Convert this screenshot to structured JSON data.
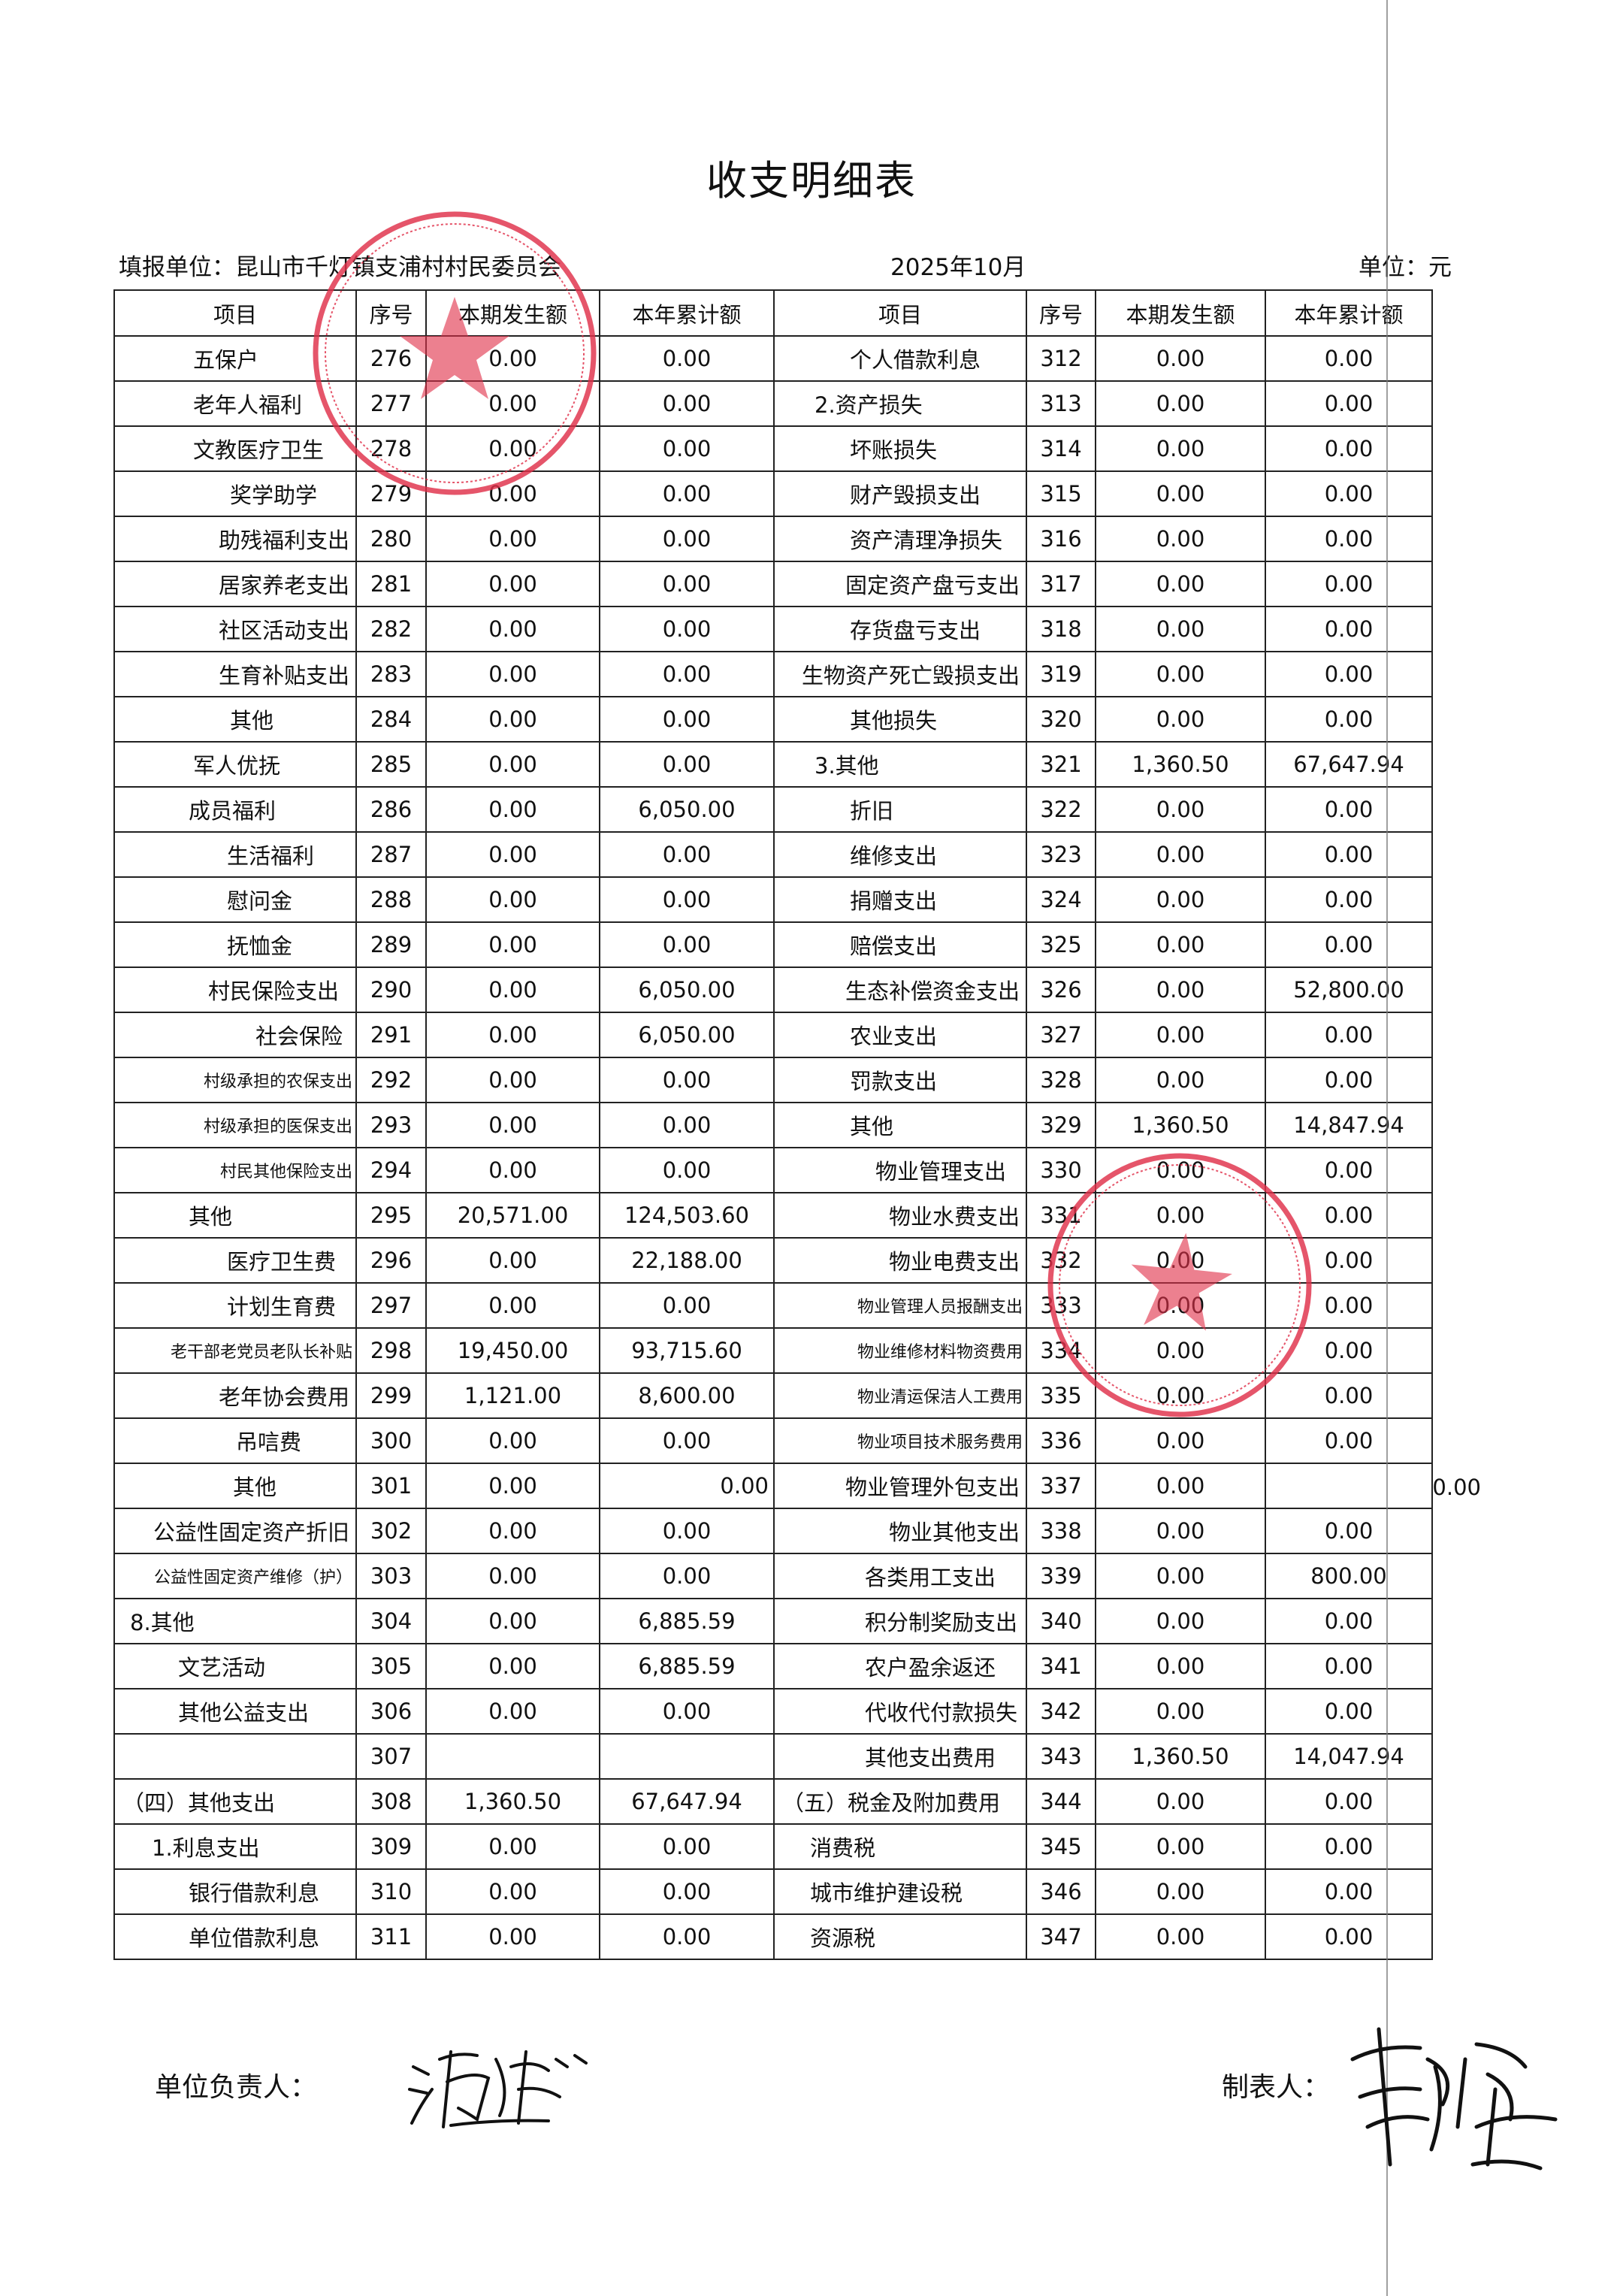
{
  "title": "收支明细表",
  "header": {
    "unit_name": "填报单位：昆山市千灯镇支浦村村民委员会",
    "period": "2025年10月",
    "unit": "单位：元"
  },
  "columns": [
    "项目",
    "序号",
    "本期发生额",
    "本年累计额",
    "项目",
    "序号",
    "本期发生额",
    "本年累计额"
  ],
  "rows": [
    [
      [
        "五保户",
        "276",
        "0.00",
        "0.00"
      ],
      [
        "个人借款利息",
        "312",
        "0.00",
        "0.00"
      ]
    ],
    [
      [
        "老年人福利",
        "277",
        "0.00",
        "0.00"
      ],
      [
        "2.资产损失",
        "313",
        "0.00",
        "0.00"
      ]
    ],
    [
      [
        "文教医疗卫生",
        "278",
        "0.00",
        "0.00"
      ],
      [
        "坏账损失",
        "314",
        "0.00",
        "0.00"
      ]
    ],
    [
      [
        "奖学助学",
        "279",
        "0.00",
        "0.00"
      ],
      [
        "财产毁损支出",
        "315",
        "0.00",
        "0.00"
      ]
    ],
    [
      [
        "助残福利支出",
        "280",
        "0.00",
        "0.00"
      ],
      [
        "资产清理净损失",
        "316",
        "0.00",
        "0.00"
      ]
    ],
    [
      [
        "居家养老支出",
        "281",
        "0.00",
        "0.00"
      ],
      [
        "固定资产盘亏支出",
        "317",
        "0.00",
        "0.00"
      ]
    ],
    [
      [
        "社区活动支出",
        "282",
        "0.00",
        "0.00"
      ],
      [
        "存货盘亏支出",
        "318",
        "0.00",
        "0.00"
      ]
    ],
    [
      [
        "生育补贴支出",
        "283",
        "0.00",
        "0.00"
      ],
      [
        "生物资产死亡毁损支出",
        "319",
        "0.00",
        "0.00"
      ]
    ],
    [
      [
        "其他",
        "284",
        "0.00",
        "0.00"
      ],
      [
        "其他损失",
        "320",
        "0.00",
        "0.00"
      ]
    ],
    [
      [
        "军人优抚",
        "285",
        "0.00",
        "0.00"
      ],
      [
        "3.其他",
        "321",
        "1,360.50",
        "67,647.94"
      ]
    ],
    [
      [
        "成员福利",
        "286",
        "0.00",
        "6,050.00"
      ],
      [
        "折旧",
        "322",
        "0.00",
        "0.00"
      ]
    ],
    [
      [
        "生活福利",
        "287",
        "0.00",
        "0.00"
      ],
      [
        "维修支出",
        "323",
        "0.00",
        "0.00"
      ]
    ],
    [
      [
        "慰问金",
        "288",
        "0.00",
        "0.00"
      ],
      [
        "捐赠支出",
        "324",
        "0.00",
        "0.00"
      ]
    ],
    [
      [
        "抚恤金",
        "289",
        "0.00",
        "0.00"
      ],
      [
        "赔偿支出",
        "325",
        "0.00",
        "0.00"
      ]
    ],
    [
      [
        "村民保险支出",
        "290",
        "0.00",
        "6,050.00"
      ],
      [
        "生态补偿资金支出",
        "326",
        "0.00",
        "52,800.00"
      ]
    ],
    [
      [
        "社会保险",
        "291",
        "0.00",
        "6,050.00"
      ],
      [
        "农业支出",
        "327",
        "0.00",
        "0.00"
      ]
    ],
    [
      [
        "村级承担的农保支出",
        "292",
        "0.00",
        "0.00"
      ],
      [
        "罚款支出",
        "328",
        "0.00",
        "0.00"
      ]
    ],
    [
      [
        "村级承担的医保支出",
        "293",
        "0.00",
        "0.00"
      ],
      [
        "其他",
        "329",
        "1,360.50",
        "14,847.94"
      ]
    ],
    [
      [
        "村民其他保险支出",
        "294",
        "0.00",
        "0.00"
      ],
      [
        "物业管理支出",
        "330",
        "0.00",
        "0.00"
      ]
    ],
    [
      [
        "其他",
        "295",
        "20,571.00",
        "124,503.60"
      ],
      [
        "物业水费支出",
        "331",
        "0.00",
        "0.00"
      ]
    ],
    [
      [
        "医疗卫生费",
        "296",
        "0.00",
        "22,188.00"
      ],
      [
        "物业电费支出",
        "332",
        "0.00",
        "0.00"
      ]
    ],
    [
      [
        "计划生育费",
        "297",
        "0.00",
        "0.00"
      ],
      [
        "物业管理人员报酬支出",
        "333",
        "0.00",
        "0.00"
      ]
    ],
    [
      [
        "老干部老党员老队长补贴",
        "298",
        "19,450.00",
        "93,715.60"
      ],
      [
        "物业维修材料物资费用",
        "334",
        "0.00",
        "0.00"
      ]
    ],
    [
      [
        "老年协会费用",
        "299",
        "1,121.00",
        "8,600.00"
      ],
      [
        "物业清运保洁人工费用",
        "335",
        "0.00",
        "0.00"
      ]
    ],
    [
      [
        "吊唁费",
        "300",
        "0.00",
        "0.00"
      ],
      [
        "物业项目技术服务费用",
        "336",
        "0.00",
        "0.00"
      ]
    ],
    [
      [
        "其他",
        "301",
        "0.00",
        "0.00"
      ],
      [
        "物业管理外包支出",
        "337",
        "0.00",
        "0.00"
      ]
    ],
    [
      [
        "公益性固定资产折旧",
        "302",
        "0.00",
        "0.00"
      ],
      [
        "物业其他支出",
        "338",
        "0.00",
        "0.00"
      ]
    ],
    [
      [
        "公益性固定资产维修（护）",
        "303",
        "0.00",
        "0.00"
      ],
      [
        "各类用工支出",
        "339",
        "0.00",
        "800.00"
      ]
    ],
    [
      [
        "8.其他",
        "304",
        "0.00",
        "6,885.59"
      ],
      [
        "积分制奖励支出",
        "340",
        "0.00",
        "0.00"
      ]
    ],
    [
      [
        "文艺活动",
        "305",
        "0.00",
        "6,885.59"
      ],
      [
        "农户盈余返还",
        "341",
        "0.00",
        "0.00"
      ]
    ],
    [
      [
        "其他公益支出",
        "306",
        "0.00",
        "0.00"
      ],
      [
        "代收代付款损失",
        "342",
        "0.00",
        "0.00"
      ]
    ],
    [
      [
        "",
        "307",
        "",
        ""
      ],
      [
        "其他支出费用",
        "343",
        "1,360.50",
        "14,047.94"
      ]
    ],
    [
      [
        "（四）其他支出",
        "308",
        "1,360.50",
        "67,647.94"
      ],
      [
        "（五）税金及附加费用",
        "344",
        "0.00",
        "0.00"
      ]
    ],
    [
      [
        "1.利息支出",
        "309",
        "0.00",
        "0.00"
      ],
      [
        "消费税",
        "345",
        "0.00",
        "0.00"
      ]
    ],
    [
      [
        "银行借款利息",
        "310",
        "0.00",
        "0.00"
      ],
      [
        "城市维护建设税",
        "346",
        "0.00",
        "0.00"
      ]
    ],
    [
      [
        "单位借款利息",
        "311",
        "0.00",
        "0.00"
      ],
      [
        "资源税",
        "347",
        "0.00",
        "0.00"
      ]
    ]
  ],
  "footer": {
    "leader_label": "单位负责人：",
    "maker_label": "制表人："
  },
  "stamps": {
    "text": "昆山市千灯镇支浦村村民委员会",
    "color": "#e0304a"
  }
}
